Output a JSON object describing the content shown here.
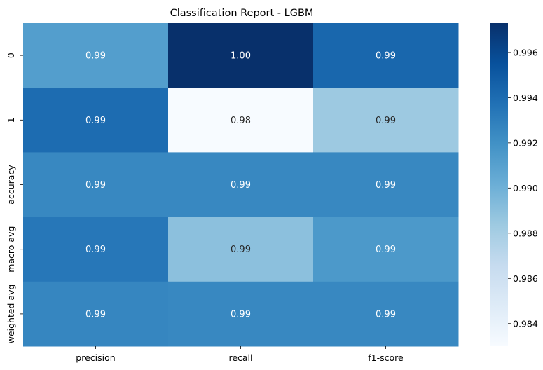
{
  "chart_data": {
    "type": "heatmap",
    "title": "Classification Report - LGBM",
    "xlabel": "",
    "ylabel": "",
    "columns": [
      "precision",
      "recall",
      "f1-score"
    ],
    "rows": [
      "0",
      "1",
      "accuracy",
      "macro avg",
      "weighted avg"
    ],
    "values": [
      [
        0.9912,
        0.9973,
        0.9943
      ],
      [
        0.994,
        0.983,
        0.9884
      ],
      [
        0.9925,
        0.9925,
        0.9925
      ],
      [
        0.9934,
        0.989,
        0.9915
      ],
      [
        0.9926,
        0.9925,
        0.9925
      ]
    ],
    "cell_labels": [
      [
        "0.99",
        "1.00",
        "0.99"
      ],
      [
        "0.99",
        "0.98",
        "0.99"
      ],
      [
        "0.99",
        "0.99",
        "0.99"
      ],
      [
        "0.99",
        "0.99",
        "0.99"
      ],
      [
        "0.99",
        "0.99",
        "0.99"
      ]
    ],
    "colormap": "Blues",
    "colorbar": {
      "range": [
        0.983,
        0.9973
      ],
      "ticks": [
        0.984,
        0.986,
        0.988,
        0.99,
        0.992,
        0.994,
        0.996
      ],
      "tick_labels": [
        "0.984",
        "0.986",
        "0.988",
        "0.990",
        "0.992",
        "0.994",
        "0.996"
      ]
    },
    "grid": false,
    "legend": "colorbar-right"
  }
}
